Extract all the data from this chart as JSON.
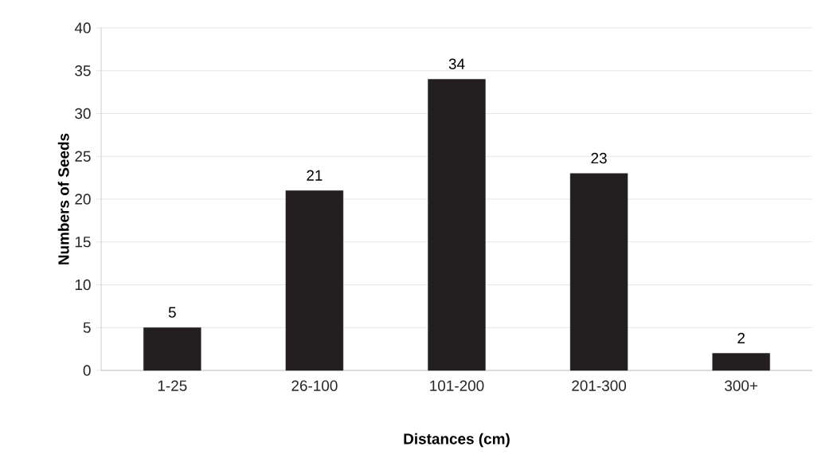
{
  "chart_data": {
    "type": "bar",
    "xlabel": "Distances (cm)",
    "ylabel": "Numbers of Seeds",
    "categories": [
      "1-25",
      "26-100",
      "101-200",
      "201-300",
      "300+"
    ],
    "values": [
      5,
      21,
      34,
      23,
      2
    ],
    "color": "#231f20",
    "ylim": [
      0,
      40
    ],
    "yticks": [
      0,
      5,
      10,
      15,
      20,
      25,
      30,
      35,
      40
    ],
    "grid": "y",
    "data_labels": true
  }
}
